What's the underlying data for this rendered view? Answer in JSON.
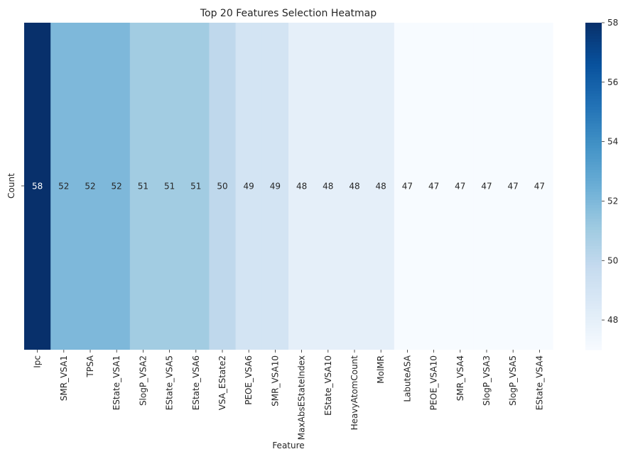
{
  "chart_data": {
    "type": "heatmap",
    "title": "Top 20 Features Selection Heatmap",
    "xlabel": "Feature",
    "ylabel": "Count",
    "features": [
      "Ipc",
      "SMR_VSA1",
      "TPSA",
      "EState_VSA1",
      "SlogP_VSA2",
      "EState_VSA5",
      "EState_VSA6",
      "VSA_EState2",
      "PEOE_VSA6",
      "SMR_VSA10",
      "MaxAbsEStateIndex",
      "EState_VSA10",
      "HeavyAtomCount",
      "MolMR",
      "LabuteASA",
      "PEOE_VSA10",
      "SMR_VSA4",
      "SlogP_VSA3",
      "SlogP_VSA5",
      "EState_VSA4"
    ],
    "values": [
      58,
      52,
      52,
      52,
      51,
      51,
      51,
      50,
      49,
      49,
      48,
      48,
      48,
      48,
      47,
      47,
      47,
      47,
      47,
      47
    ],
    "colorbar": {
      "min": 47,
      "max": 58,
      "ticks": [
        48,
        50,
        52,
        54,
        56,
        58
      ]
    },
    "colormap": "Blues",
    "colors": {
      "low": "#f7fbff",
      "high": "#08306b"
    }
  }
}
